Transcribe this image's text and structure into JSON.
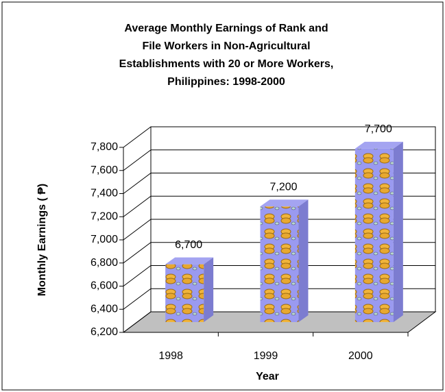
{
  "chart_data": {
    "type": "bar3d",
    "title": [
      "Average Monthly Earnings of Rank and",
      "File Workers in Non-Agricultural",
      "Establishments with 20 or More Workers,",
      "Philippines: 1998-2000"
    ],
    "x_label": "Year",
    "y_label": "Monthly Earnings ( ₱)",
    "categories": [
      "1998",
      "1999",
      "2000"
    ],
    "values": [
      6700,
      7200,
      7700
    ],
    "value_labels": [
      "6,700",
      "7,200",
      "7,700"
    ],
    "color": "#9a9af0",
    "ylim": [
      6200,
      7800
    ],
    "yticks": [
      {
        "value": 6200,
        "label": "6,200"
      },
      {
        "value": 6400,
        "label": "6,400"
      },
      {
        "value": 6600,
        "label": "6,600"
      },
      {
        "value": 6800,
        "label": "6,800"
      },
      {
        "value": 7000,
        "label": "7,000"
      },
      {
        "value": 7200,
        "label": "7,200"
      },
      {
        "value": 7400,
        "label": "7,400"
      },
      {
        "value": 7600,
        "label": "7,600"
      },
      {
        "value": 7800,
        "label": "7,800"
      }
    ],
    "grid": true
  }
}
